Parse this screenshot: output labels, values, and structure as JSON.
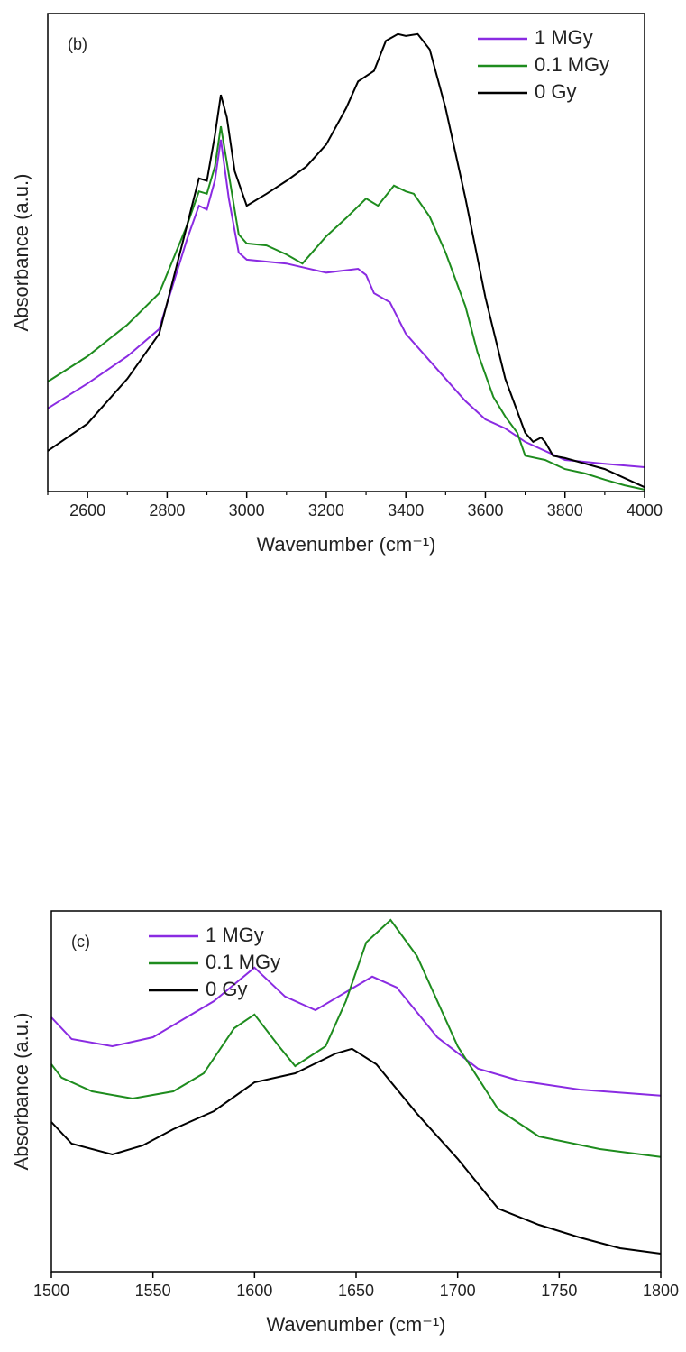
{
  "chart_data": [
    {
      "type": "line",
      "annotation": "(b)",
      "x_label": "Wavenumber (cm⁻¹)",
      "y_label": "Absorbance (a.u.)",
      "xlim": [
        2500,
        4000
      ],
      "ylim": [
        0,
        100
      ],
      "xticks": [
        2600,
        2800,
        3000,
        3200,
        3400,
        3600,
        3800,
        4000
      ],
      "xminor_ticks": [
        2500,
        2700,
        2900,
        3100,
        3300,
        3500,
        3700,
        3900
      ],
      "legend": "upper right",
      "series": [
        {
          "name": "1 MGy",
          "color": "#8a2be2",
          "x": [
            2500,
            2600,
            2700,
            2780,
            2850,
            2880,
            2900,
            2920,
            2935,
            2955,
            2980,
            3000,
            3100,
            3200,
            3280,
            3300,
            3320,
            3360,
            3400,
            3500,
            3550,
            3600,
            3650,
            3700,
            3800,
            3900,
            4000
          ],
          "values": [
            17.4,
            22.6,
            28.3,
            34,
            52.8,
            59.8,
            59,
            65.1,
            73.6,
            61.3,
            50,
            48.5,
            47.7,
            45.8,
            46.6,
            45.3,
            41.5,
            39.6,
            33,
            23.6,
            18.9,
            15.1,
            13.2,
            10.4,
            6.6,
            5.8,
            5.1
          ]
        },
        {
          "name": "0.1 MGy",
          "color": "#1e8c1e",
          "x": [
            2500,
            2600,
            2700,
            2780,
            2850,
            2880,
            2900,
            2920,
            2935,
            2950,
            2980,
            3000,
            3050,
            3100,
            3140,
            3200,
            3250,
            3300,
            3330,
            3370,
            3400,
            3420,
            3460,
            3500,
            3550,
            3580,
            3620,
            3650,
            3680,
            3700,
            3750,
            3800,
            3850,
            3900,
            3950,
            4000
          ],
          "values": [
            23,
            28.3,
            34.9,
            41.5,
            55.7,
            62.8,
            62.3,
            68,
            76.4,
            68.9,
            53.8,
            51.9,
            51.5,
            49.6,
            47.7,
            53.4,
            57.2,
            61.3,
            59.8,
            64,
            62.8,
            62.3,
            57.5,
            50,
            38.7,
            29.2,
            19.8,
            15.7,
            12.3,
            7.5,
            6.6,
            4.7,
            3.8,
            2.5,
            1.3,
            0.4
          ]
        },
        {
          "name": "0 Gy",
          "color": "#000000",
          "x": [
            2500,
            2600,
            2700,
            2780,
            2850,
            2880,
            2900,
            2920,
            2935,
            2950,
            2970,
            3000,
            3050,
            3100,
            3150,
            3200,
            3250,
            3280,
            3320,
            3350,
            3380,
            3400,
            3430,
            3460,
            3500,
            3550,
            3600,
            3650,
            3700,
            3720,
            3740,
            3750,
            3770,
            3800,
            3900,
            4000
          ],
          "values": [
            8.5,
            14.2,
            23.6,
            33,
            55.7,
            65.5,
            65,
            74.5,
            83,
            78.3,
            67,
            59.8,
            62.3,
            65,
            68,
            72.6,
            80.2,
            85.8,
            88,
            94.3,
            95.7,
            95.3,
            95.7,
            92.5,
            80.2,
            61.3,
            40.6,
            23.6,
            12.3,
            10.4,
            11.3,
            10.4,
            7.5,
            7,
            4.7,
            0.9
          ]
        }
      ]
    },
    {
      "type": "line",
      "annotation": "(c)",
      "x_label": "Wavenumber (cm⁻¹)",
      "y_label": "Absorbance (a.u.)",
      "xlim": [
        1500,
        1800
      ],
      "ylim": [
        0,
        100
      ],
      "xticks": [
        1500,
        1550,
        1600,
        1650,
        1700,
        1750,
        1800
      ],
      "legend": "upper left",
      "series": [
        {
          "name": "1 MGy",
          "color": "#8a2be2",
          "x": [
            1500,
            1510,
            1530,
            1550,
            1565,
            1580,
            1600,
            1615,
            1630,
            1645,
            1658,
            1670,
            1690,
            1710,
            1730,
            1760,
            1800
          ],
          "values": [
            70.5,
            64.5,
            62.5,
            65,
            70,
            75,
            84.3,
            76.3,
            72.5,
            77.5,
            81.8,
            78.8,
            65,
            56.3,
            53,
            50.5,
            48.8
          ]
        },
        {
          "name": "0.1 MGy",
          "color": "#1e8c1e",
          "x": [
            1500,
            1505,
            1520,
            1540,
            1560,
            1575,
            1590,
            1600,
            1612,
            1620,
            1635,
            1645,
            1655,
            1667,
            1680,
            1700,
            1720,
            1740,
            1770,
            1800
          ],
          "values": [
            57.5,
            53.8,
            50,
            48,
            50,
            55,
            67.5,
            71.3,
            62.5,
            57,
            62.5,
            75,
            91.3,
            97.5,
            87.5,
            62.5,
            45,
            37.5,
            34,
            31.8
          ]
        },
        {
          "name": "0 Gy",
          "color": "#000000",
          "x": [
            1500,
            1510,
            1530,
            1545,
            1560,
            1580,
            1600,
            1620,
            1640,
            1648,
            1660,
            1680,
            1700,
            1720,
            1740,
            1760,
            1780,
            1800
          ],
          "values": [
            41.5,
            35.5,
            32.5,
            35,
            39.5,
            44.5,
            52.5,
            55,
            60.5,
            61.8,
            57.5,
            43.8,
            31.3,
            17.5,
            13,
            9.5,
            6.5,
            5
          ]
        }
      ]
    }
  ]
}
